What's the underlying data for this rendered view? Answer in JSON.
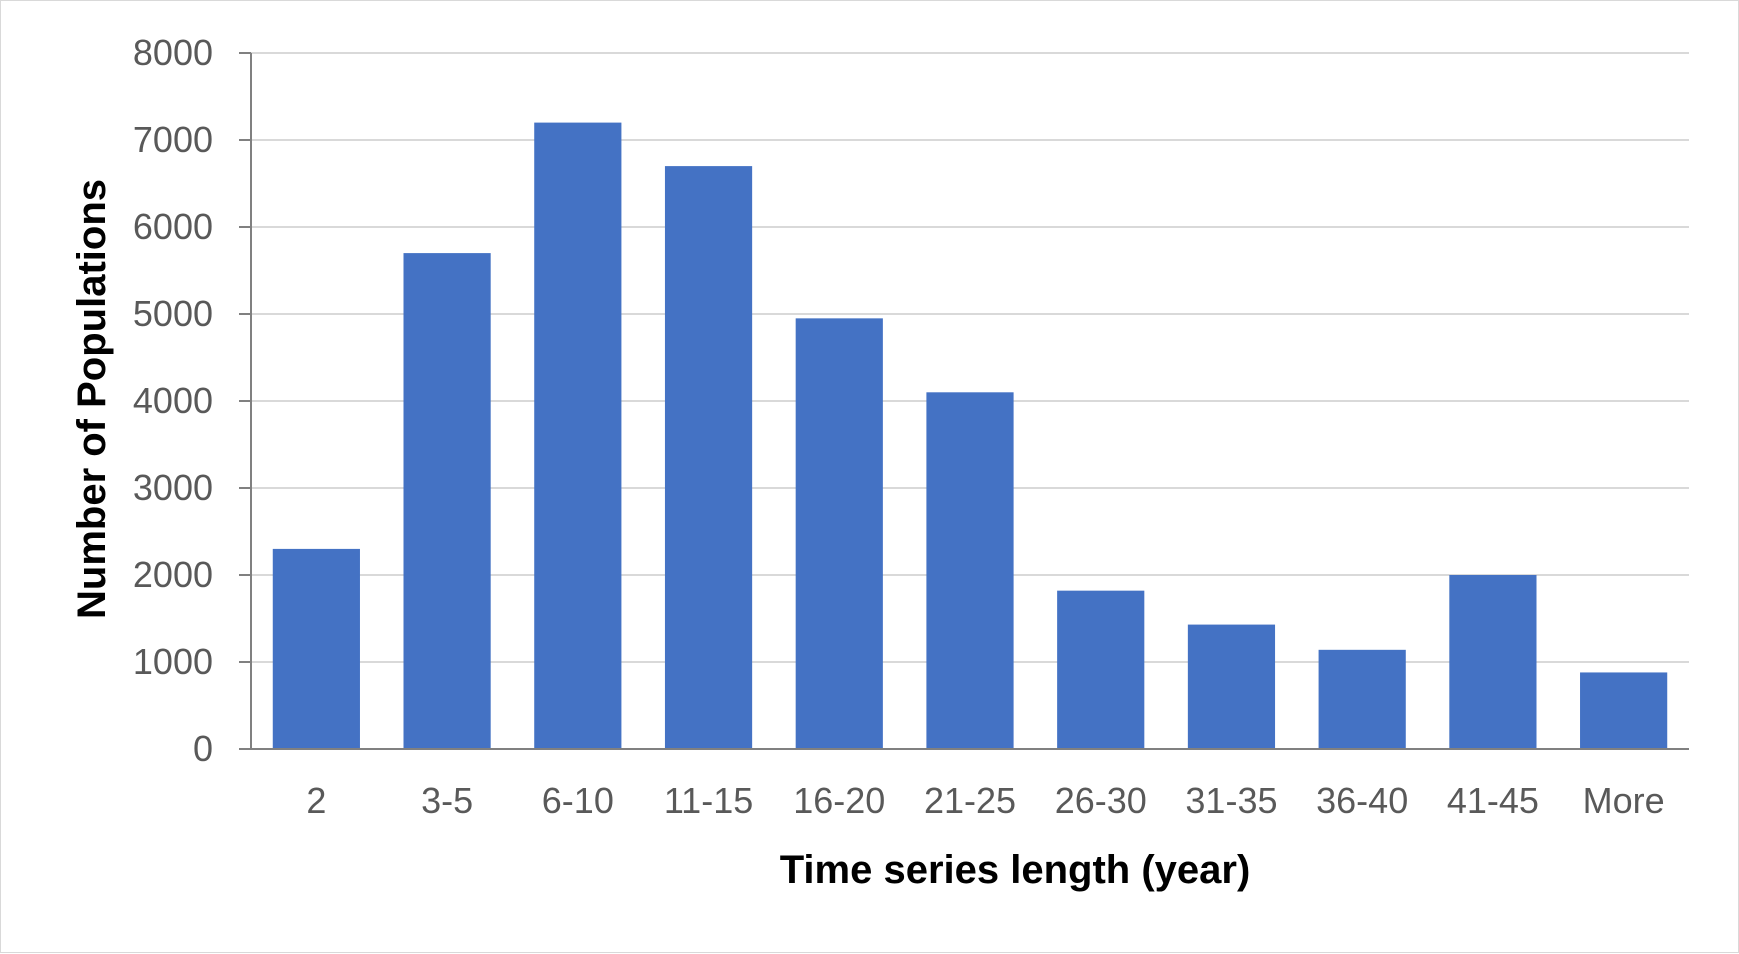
{
  "chart_data": {
    "type": "bar",
    "title": "",
    "xlabel": "Time series length (year)",
    "ylabel": "Number of Populations",
    "categories": [
      "2",
      "3-5",
      "6-10",
      "11-15",
      "16-20",
      "21-25",
      "26-30",
      "31-35",
      "36-40",
      "41-45",
      "More"
    ],
    "values": [
      2300,
      5700,
      7200,
      6700,
      4950,
      4100,
      1820,
      1430,
      1140,
      2000,
      880
    ],
    "ylim": [
      0,
      8000
    ],
    "yticks": [
      0,
      1000,
      2000,
      3000,
      4000,
      5000,
      6000,
      7000,
      8000
    ],
    "ytick_labels": [
      "0",
      "1000",
      "2000",
      "3000",
      "4000",
      "5000",
      "6000",
      "7000",
      "8000"
    ],
    "grid": true,
    "legend": "none",
    "colors": {
      "bar": "#4472c4",
      "grid": "#d9d9d9",
      "axis": "#808080",
      "tick_text": "#595959",
      "title_text": "#000000"
    }
  }
}
